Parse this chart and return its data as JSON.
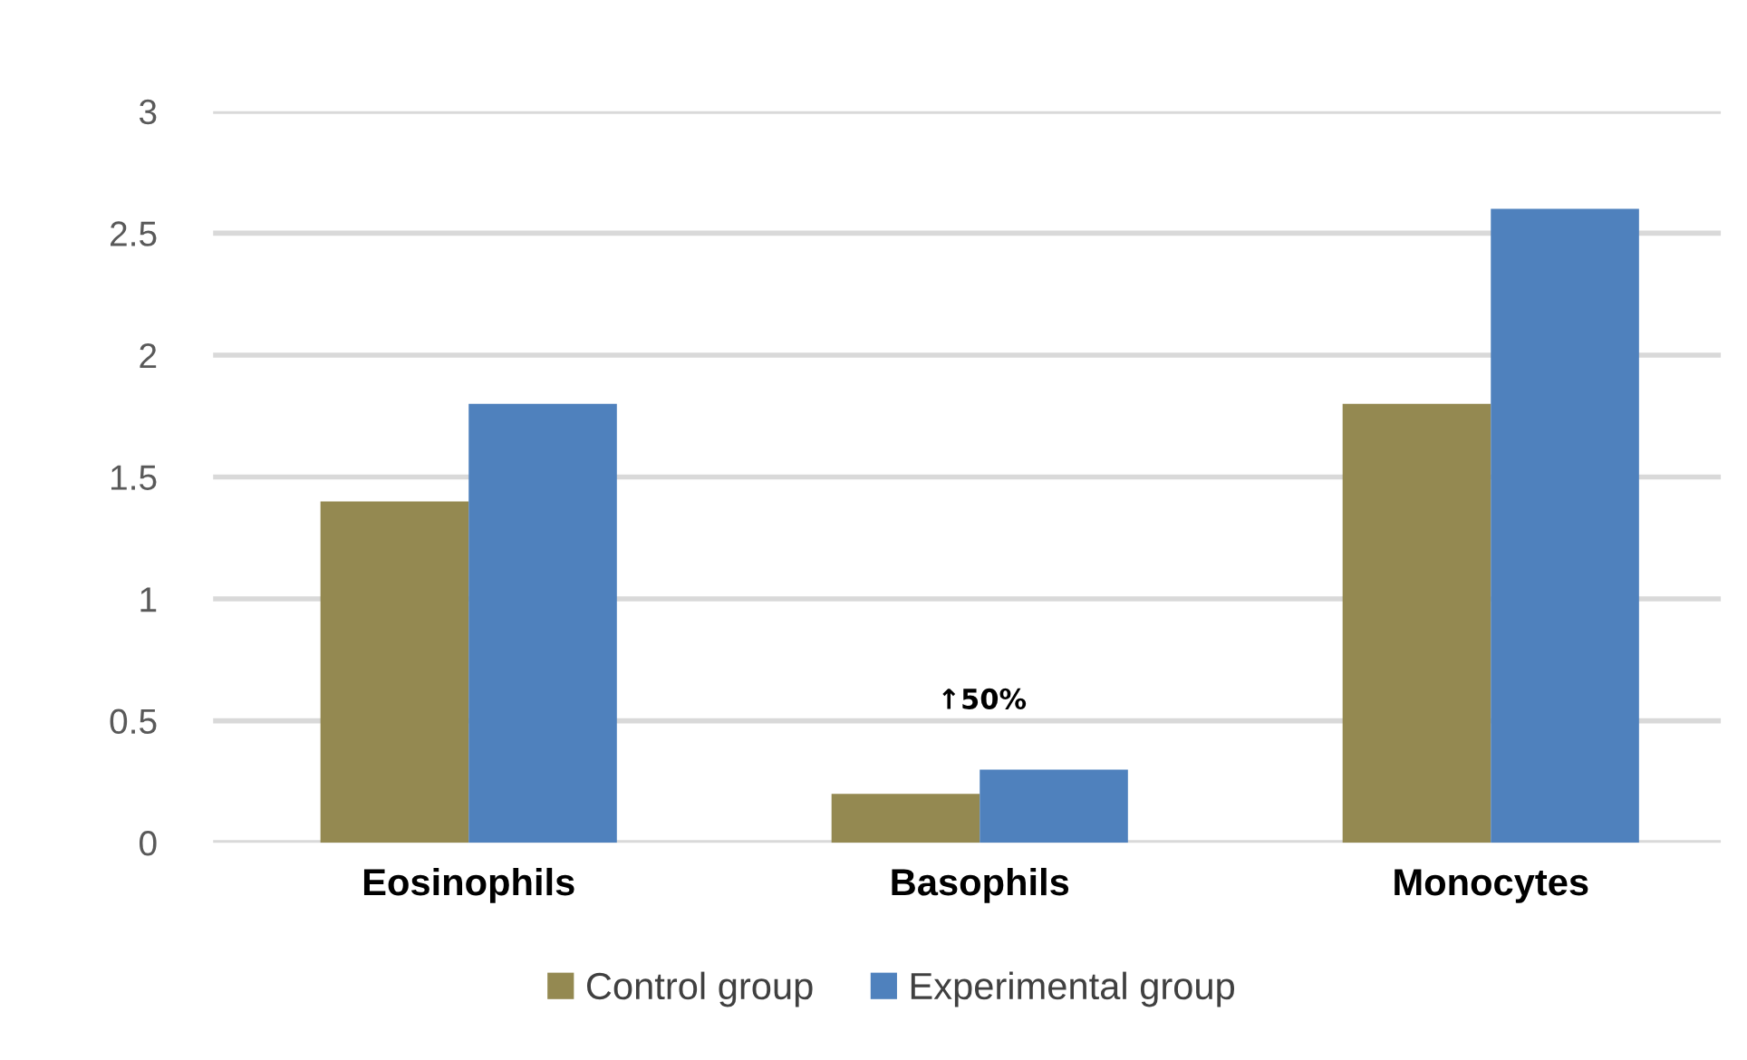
{
  "chart_data": {
    "type": "bar",
    "categories": [
      "Eosinophils",
      "Basophils",
      "Monocytes"
    ],
    "series": [
      {
        "name": "Control group",
        "color": "#948951",
        "values": [
          1.4,
          0.2,
          1.8
        ]
      },
      {
        "name": "Experimental group",
        "color": "#4f81bd",
        "values": [
          1.8,
          0.3,
          2.6
        ]
      }
    ],
    "ylim": [
      0,
      3
    ],
    "yticks": [
      0,
      0.5,
      1,
      1.5,
      2,
      2.5,
      3
    ],
    "grid": "y",
    "legend": "bottom",
    "annotations": [
      "↑50%"
    ]
  }
}
